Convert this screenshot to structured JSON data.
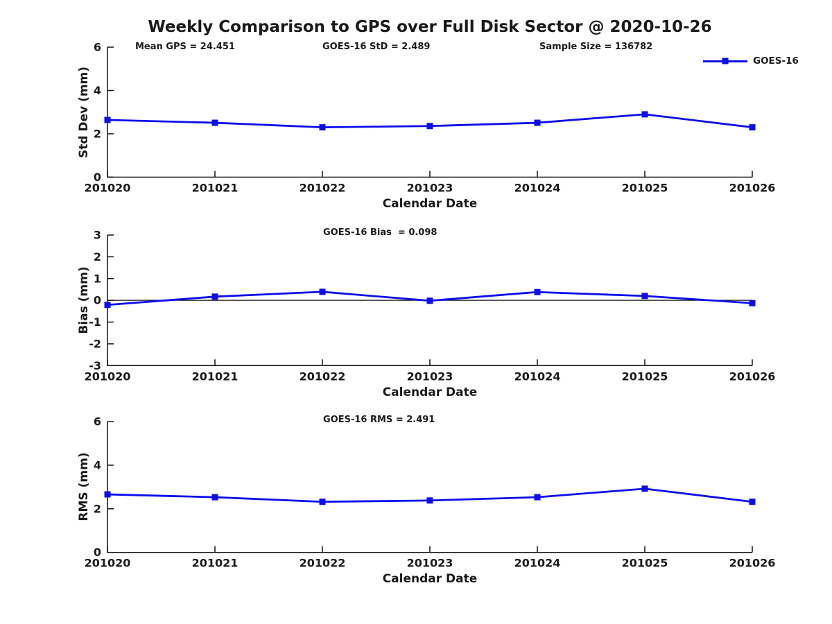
{
  "title": "Weekly Comparison to GPS over Full Disk Sector @ 2020-10-26",
  "colors": {
    "line": "#0d0dee",
    "axis": "#111111",
    "text": "#1a1a1a"
  },
  "legend": {
    "label": "GOES-16"
  },
  "chart_data": [
    {
      "type": "line",
      "title": "Std Dev subplot",
      "categories": [
        "201020",
        "201021",
        "201022",
        "201023",
        "201024",
        "201025",
        "201026"
      ],
      "series": [
        {
          "name": "GOES-16",
          "values": [
            2.64,
            2.51,
            2.3,
            2.36,
            2.51,
            2.9,
            2.3
          ]
        }
      ],
      "xlabel": "Calendar Date",
      "ylabel": "Std Dev (mm)",
      "ylim": [
        0,
        6
      ],
      "yticks": [
        0,
        2,
        4,
        6
      ],
      "grid": false,
      "zero_line": false,
      "legend_position": "top-right-outside",
      "annotations": [
        "Mean GPS = 24.451",
        "GOES-16 StD = 2.489",
        "Sample Size = 136782"
      ]
    },
    {
      "type": "line",
      "title": "Bias subplot",
      "categories": [
        "201020",
        "201021",
        "201022",
        "201023",
        "201024",
        "201025",
        "201026"
      ],
      "series": [
        {
          "name": "GOES-16",
          "values": [
            -0.21,
            0.17,
            0.39,
            -0.02,
            0.38,
            0.2,
            -0.13
          ]
        }
      ],
      "xlabel": "Calendar Date",
      "ylabel": "Bias (mm)",
      "ylim": [
        -3,
        3
      ],
      "yticks": [
        -3,
        -2,
        -1,
        0,
        1,
        2,
        3
      ],
      "grid": false,
      "zero_line": true,
      "annotations": [
        "GOES-16 Bias  = 0.098"
      ]
    },
    {
      "type": "line",
      "title": "RMS subplot",
      "categories": [
        "201020",
        "201021",
        "201022",
        "201023",
        "201024",
        "201025",
        "201026"
      ],
      "series": [
        {
          "name": "GOES-16",
          "values": [
            2.66,
            2.53,
            2.32,
            2.38,
            2.53,
            2.92,
            2.32
          ]
        }
      ],
      "xlabel": "Calendar Date",
      "ylabel": "RMS (mm)",
      "ylim": [
        0,
        6
      ],
      "yticks": [
        0,
        2,
        4,
        6
      ],
      "grid": false,
      "zero_line": false,
      "annotations": [
        "GOES-16 RMS = 2.491"
      ]
    }
  ]
}
